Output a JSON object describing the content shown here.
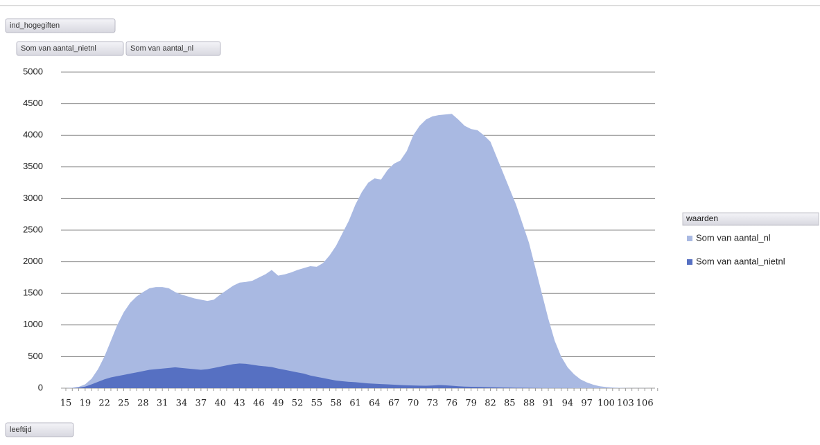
{
  "pivot_fields": {
    "filter": "ind_hogegiften",
    "values": [
      "Som van aantal_nietnl",
      "Som van aantal_nl"
    ],
    "axis": "leeftijd"
  },
  "chart_data": {
    "type": "area",
    "categories": [
      "15",
      null,
      null,
      "19",
      null,
      null,
      "22",
      null,
      null,
      "25",
      null,
      null,
      "28",
      null,
      null,
      "31",
      null,
      null,
      "34",
      null,
      null,
      "37",
      null,
      null,
      "40",
      null,
      null,
      "43",
      null,
      null,
      "46",
      null,
      null,
      "49",
      null,
      null,
      "52",
      null,
      null,
      "55",
      null,
      null,
      "58",
      null,
      null,
      "61",
      null,
      null,
      "64",
      null,
      null,
      "67",
      null,
      null,
      "70",
      null,
      null,
      "73",
      null,
      null,
      "76",
      null,
      null,
      "79",
      null,
      null,
      "82",
      null,
      null,
      "85",
      null,
      null,
      "88",
      null,
      null,
      "91",
      null,
      null,
      "94",
      null,
      null,
      "97",
      null,
      null,
      "100",
      null,
      null,
      "103",
      null,
      null,
      "106",
      null,
      null
    ],
    "legend_title": "waarden",
    "series": [
      {
        "name": "Som van aantal_nl",
        "color": "#a9b9e2",
        "values": [
          0,
          5,
          20,
          60,
          150,
          300,
          500,
          750,
          1000,
          1200,
          1350,
          1450,
          1520,
          1580,
          1600,
          1600,
          1580,
          1520,
          1480,
          1450,
          1420,
          1400,
          1380,
          1400,
          1480,
          1550,
          1620,
          1670,
          1680,
          1700,
          1750,
          1800,
          1870,
          1780,
          1800,
          1830,
          1870,
          1900,
          1930,
          1920,
          1980,
          2100,
          2250,
          2450,
          2650,
          2900,
          3100,
          3250,
          3320,
          3300,
          3450,
          3550,
          3600,
          3750,
          4000,
          4150,
          4250,
          4300,
          4320,
          4330,
          4340,
          4250,
          4150,
          4100,
          4080,
          4000,
          3900,
          3650,
          3400,
          3150,
          2900,
          2600,
          2300,
          1900,
          1500,
          1100,
          750,
          500,
          330,
          220,
          140,
          90,
          55,
          30,
          18,
          10,
          6,
          3,
          2,
          1,
          1,
          0,
          0
        ]
      },
      {
        "name": "Som van aantal_nietnl",
        "color": "#5670c2",
        "values": [
          0,
          2,
          8,
          25,
          60,
          100,
          140,
          170,
          190,
          210,
          230,
          250,
          270,
          290,
          300,
          310,
          320,
          330,
          320,
          310,
          300,
          290,
          300,
          320,
          340,
          360,
          380,
          390,
          385,
          370,
          355,
          345,
          335,
          310,
          290,
          270,
          250,
          230,
          200,
          180,
          160,
          140,
          120,
          110,
          100,
          95,
          85,
          75,
          70,
          65,
          60,
          55,
          50,
          45,
          42,
          40,
          38,
          42,
          50,
          45,
          38,
          30,
          25,
          22,
          20,
          18,
          15,
          13,
          10,
          8,
          6,
          5,
          4,
          3,
          2,
          2,
          1,
          1,
          1,
          0,
          0,
          0,
          0,
          0,
          0,
          0,
          0,
          0,
          0,
          0,
          0,
          0,
          0
        ]
      }
    ],
    "ylim": [
      0,
      5000
    ],
    "yticks": [
      0,
      500,
      1000,
      1500,
      2000,
      2500,
      3000,
      3500,
      4000,
      4500,
      5000
    ],
    "grid": true
  }
}
